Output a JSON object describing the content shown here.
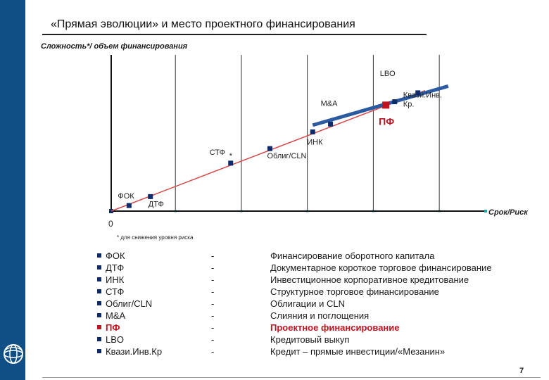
{
  "title": "«Прямая эволюции» и место проектного финансирования",
  "page_number": "7",
  "colors": {
    "accent": "#0f4f86",
    "highlight": "#c0121f",
    "marker": "#0d2b6b",
    "trend": "#d44a4a",
    "zone": "#2c5aa0"
  },
  "chart_data": {
    "type": "scatter",
    "xlabel": "Срок/Риск",
    "ylabel": "Сложность*/ объем финансирования",
    "origin_label": "0",
    "footnote": "* для снижения уровня риска",
    "star_marker": "*",
    "points": [
      {
        "label": "ФОК",
        "x": 1.0,
        "y": 0.5,
        "highlight": false
      },
      {
        "label": "ДТФ",
        "x": 2.2,
        "y": 1.3,
        "highlight": false
      },
      {
        "label": "СТФ",
        "x": 6.7,
        "y": 4.3,
        "highlight": false
      },
      {
        "label": "Облиг/CLN",
        "x": 8.9,
        "y": 5.6,
        "highlight": false
      },
      {
        "label": "ИНК",
        "x": 11.3,
        "y": 7.1,
        "highlight": false
      },
      {
        "label": "М&А",
        "x": 12.3,
        "y": 7.8,
        "highlight": false
      },
      {
        "label": "ПФ",
        "x": 15.4,
        "y": 9.5,
        "highlight": true
      },
      {
        "label": "Квази.Инв. Кр.",
        "x": 15.9,
        "y": 9.8,
        "highlight": false
      },
      {
        "label": "LBO",
        "x": 17.2,
        "y": 10.6,
        "highlight": false
      }
    ],
    "trend_line": {
      "from": [
        0,
        0
      ],
      "to": [
        17.6,
        10.8
      ]
    },
    "zone_line": {
      "from": [
        11.3,
        7.7
      ],
      "to": [
        18.9,
        11.2
      ]
    },
    "gridlines_x": [
      3.6,
      7.3,
      11.0,
      14.7,
      18.4
    ],
    "xlim": [
      0,
      21
    ],
    "ylim": [
      0,
      14
    ]
  },
  "legend": [
    {
      "term": "ФОК",
      "dash": "-",
      "desc": "Финансирование оборотного капитала",
      "highlight": false
    },
    {
      "term": "ДТФ",
      "dash": "-",
      "desc": "Документарное короткое торговое финансирование",
      "highlight": false
    },
    {
      "term": "ИНК",
      "dash": "-",
      "desc": "Инвестиционное корпоративное кредитование",
      "highlight": false
    },
    {
      "term": "СТФ",
      "dash": "-",
      "desc": "Структурное торговое финансирование",
      "highlight": false
    },
    {
      "term": "Облиг/CLN",
      "dash": "-",
      "desc": "Облигации и CLN",
      "highlight": false
    },
    {
      "term": "M&A",
      "dash": "-",
      "desc": "Слияния и поглощения",
      "highlight": false
    },
    {
      "term": "ПФ",
      "dash": "-",
      "desc": "Проектное финансирование",
      "highlight": true
    },
    {
      "term": "LBO",
      "dash": "-",
      "desc": "Кредитовый выкуп",
      "highlight": false
    },
    {
      "term": "Квази.Инв.Кр",
      "dash": "-",
      "desc": "Кредит – прямые инвестиции/«Мезанин»",
      "highlight": false
    }
  ]
}
